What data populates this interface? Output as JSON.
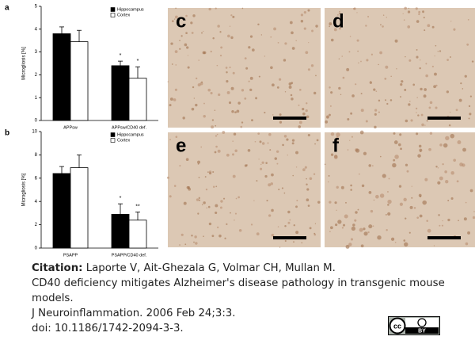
{
  "chart_data": [
    {
      "type": "bar",
      "panel": "a",
      "ylabel": "Microgliosis [%]",
      "categories": [
        "APPsw",
        "APPsw/CD40 def."
      ],
      "series": [
        {
          "name": "Hippocampus",
          "color": "#000000",
          "values": [
            3.8,
            2.4
          ],
          "errors": [
            0.3,
            0.2
          ],
          "significance": [
            null,
            "*"
          ]
        },
        {
          "name": "Cortex",
          "color": "#ffffff",
          "values": [
            3.45,
            1.85
          ],
          "errors": [
            0.5,
            0.5
          ],
          "significance": [
            null,
            "*"
          ]
        }
      ],
      "ylim": [
        0,
        5
      ],
      "yticks": [
        0,
        1,
        2,
        3,
        4,
        5
      ]
    },
    {
      "type": "bar",
      "panel": "b",
      "ylabel": "Microgliosis [%]",
      "categories": [
        "PSAPP",
        "PSAPP/CD40 def."
      ],
      "series": [
        {
          "name": "Hippocampus",
          "color": "#000000",
          "values": [
            6.4,
            2.9
          ],
          "errors": [
            0.6,
            0.9
          ],
          "significance": [
            null,
            "*"
          ]
        },
        {
          "name": "Cortex",
          "color": "#ffffff",
          "values": [
            6.9,
            2.4
          ],
          "errors": [
            1.1,
            0.7
          ],
          "significance": [
            null,
            "**"
          ]
        }
      ],
      "ylim": [
        0,
        10
      ],
      "yticks": [
        0,
        2,
        4,
        6,
        8,
        10
      ]
    }
  ],
  "micrographs": [
    {
      "label": "c"
    },
    {
      "label": "d"
    },
    {
      "label": "e"
    },
    {
      "label": "f"
    }
  ],
  "citation": {
    "label": "Citation:",
    "authors": "Laporte V, Ait-Ghezala G, Volmar CH, Mullan M.",
    "title": "CD40 deficiency mitigates Alzheimer's disease pathology in transgenic mouse models.",
    "journal": "J Neuroinflammation. 2006 Feb 24;3:3.",
    "doi": "doi: 10.1186/1742-2094-3-3."
  },
  "license": {
    "badge": "cc",
    "by": "BY"
  }
}
